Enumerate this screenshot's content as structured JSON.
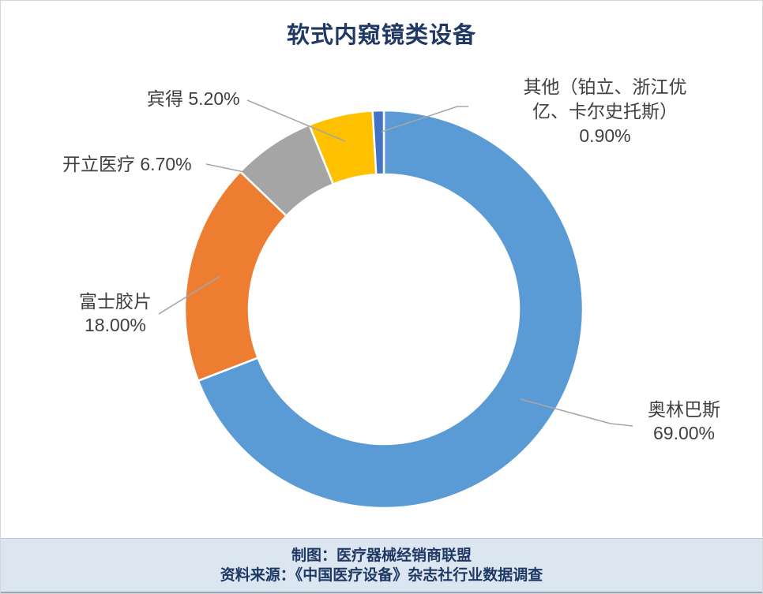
{
  "title": "软式内窥镜类设备",
  "chart_data": {
    "type": "pie",
    "subtype": "donut",
    "title": "软式内窥镜类设备",
    "categories": [
      "奥林巴斯",
      "富士胶片",
      "开立医疗",
      "宾得",
      "其他（铂立、浙江优亿、卡尔史托斯）"
    ],
    "values": [
      69.0,
      18.0,
      6.7,
      5.2,
      0.9
    ],
    "value_labels": [
      "69.00%",
      "18.00%",
      "6.70%",
      "5.20%",
      "0.90%"
    ],
    "colors": [
      "#5B9BD5",
      "#ED7D31",
      "#A5A5A5",
      "#FFC000",
      "#4472C4"
    ],
    "start_angle_deg": 0,
    "direction": "clockwise",
    "hole_ratio": 0.68,
    "legend_position": "none",
    "labels": {
      "olympus": {
        "lines": [
          "奥林巴斯",
          "69.00%"
        ]
      },
      "fujifilm": {
        "lines": [
          "富士胶片",
          "18.00%"
        ]
      },
      "sonoscape": {
        "line": "开立医疗 6.70%"
      },
      "pentax": {
        "line": "宾得 5.20%"
      },
      "others": {
        "lines": [
          "其他（铂立、浙江优",
          "亿、卡尔史托斯）",
          "0.90%"
        ]
      }
    }
  },
  "footer": {
    "line1": "制图：医疗器械经销商联盟",
    "line2": "资料来源：《中国医疗设备》杂志社行业数据调查"
  }
}
